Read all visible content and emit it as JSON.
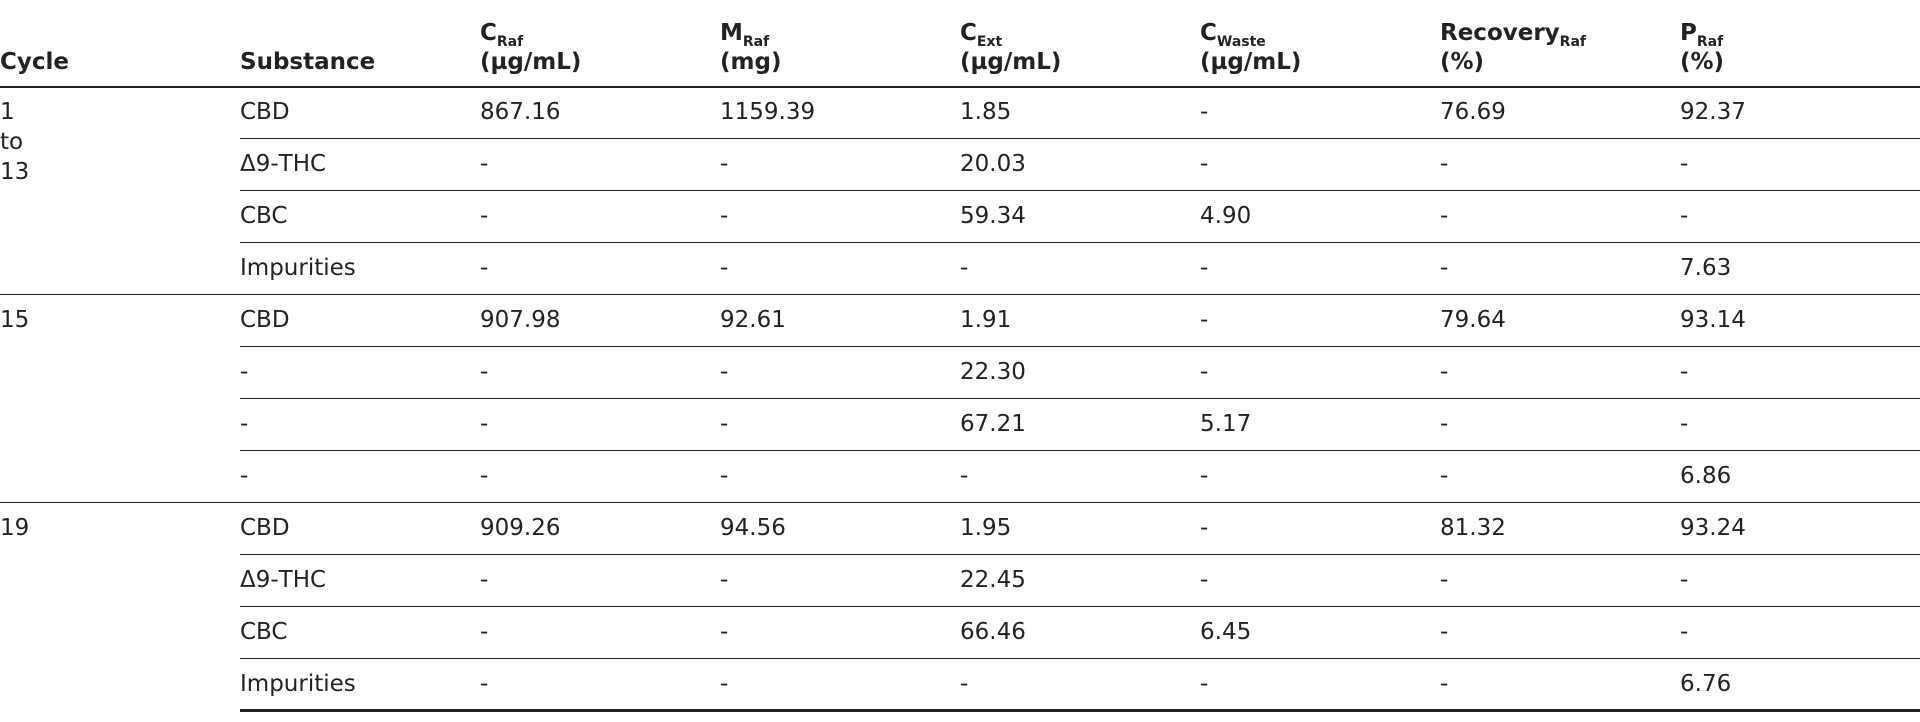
{
  "table": {
    "columns": [
      {
        "main": "Cycle"
      },
      {
        "main": "Substance"
      },
      {
        "main": "C",
        "sub": "Raf",
        "unit": "(µg/mL)"
      },
      {
        "main": "M",
        "sub": "Raf",
        "unit": "(mg)"
      },
      {
        "main": "C",
        "sub": "Ext",
        "unit": "(µg/mL)"
      },
      {
        "main": "C",
        "sub": "Waste",
        "unit": "(µg/mL)"
      },
      {
        "main": "Recovery",
        "sub": "Raf",
        "unit": "(%)"
      },
      {
        "main": "P",
        "sub": "Raf",
        "unit": "(%)"
      }
    ],
    "groups": [
      {
        "cycle": [
          "1",
          "to",
          "13"
        ],
        "rows": [
          [
            "CBD",
            "867.16",
            "1159.39",
            "1.85",
            "-",
            "76.69",
            "92.37"
          ],
          [
            "Δ9-THC",
            "-",
            "-",
            "20.03",
            "-",
            "-",
            "-"
          ],
          [
            "CBC",
            "-",
            "-",
            "59.34",
            "4.90",
            "-",
            "-"
          ],
          [
            "Impurities",
            "-",
            "-",
            "-",
            "-",
            "-",
            "7.63"
          ]
        ]
      },
      {
        "cycle": [
          "15"
        ],
        "rows": [
          [
            "CBD",
            "907.98",
            "92.61",
            "1.91",
            "-",
            "79.64",
            "93.14"
          ],
          [
            "-",
            "-",
            "-",
            "22.30",
            "-",
            "-",
            "-"
          ],
          [
            "-",
            "-",
            "-",
            "67.21",
            "5.17",
            "-",
            "-"
          ],
          [
            "-",
            "-",
            "-",
            "-",
            "-",
            "-",
            "6.86"
          ]
        ]
      },
      {
        "cycle": [
          "19"
        ],
        "rows": [
          [
            "CBD",
            "909.26",
            "94.56",
            "1.95",
            "-",
            "81.32",
            "93.24"
          ],
          [
            "Δ9-THC",
            "-",
            "-",
            "22.45",
            "-",
            "-",
            "-"
          ],
          [
            "CBC",
            "-",
            "-",
            "66.46",
            "6.45",
            "-",
            "-"
          ],
          [
            "Impurities",
            "-",
            "-",
            "-",
            "-",
            "-",
            "6.76"
          ]
        ]
      }
    ]
  }
}
